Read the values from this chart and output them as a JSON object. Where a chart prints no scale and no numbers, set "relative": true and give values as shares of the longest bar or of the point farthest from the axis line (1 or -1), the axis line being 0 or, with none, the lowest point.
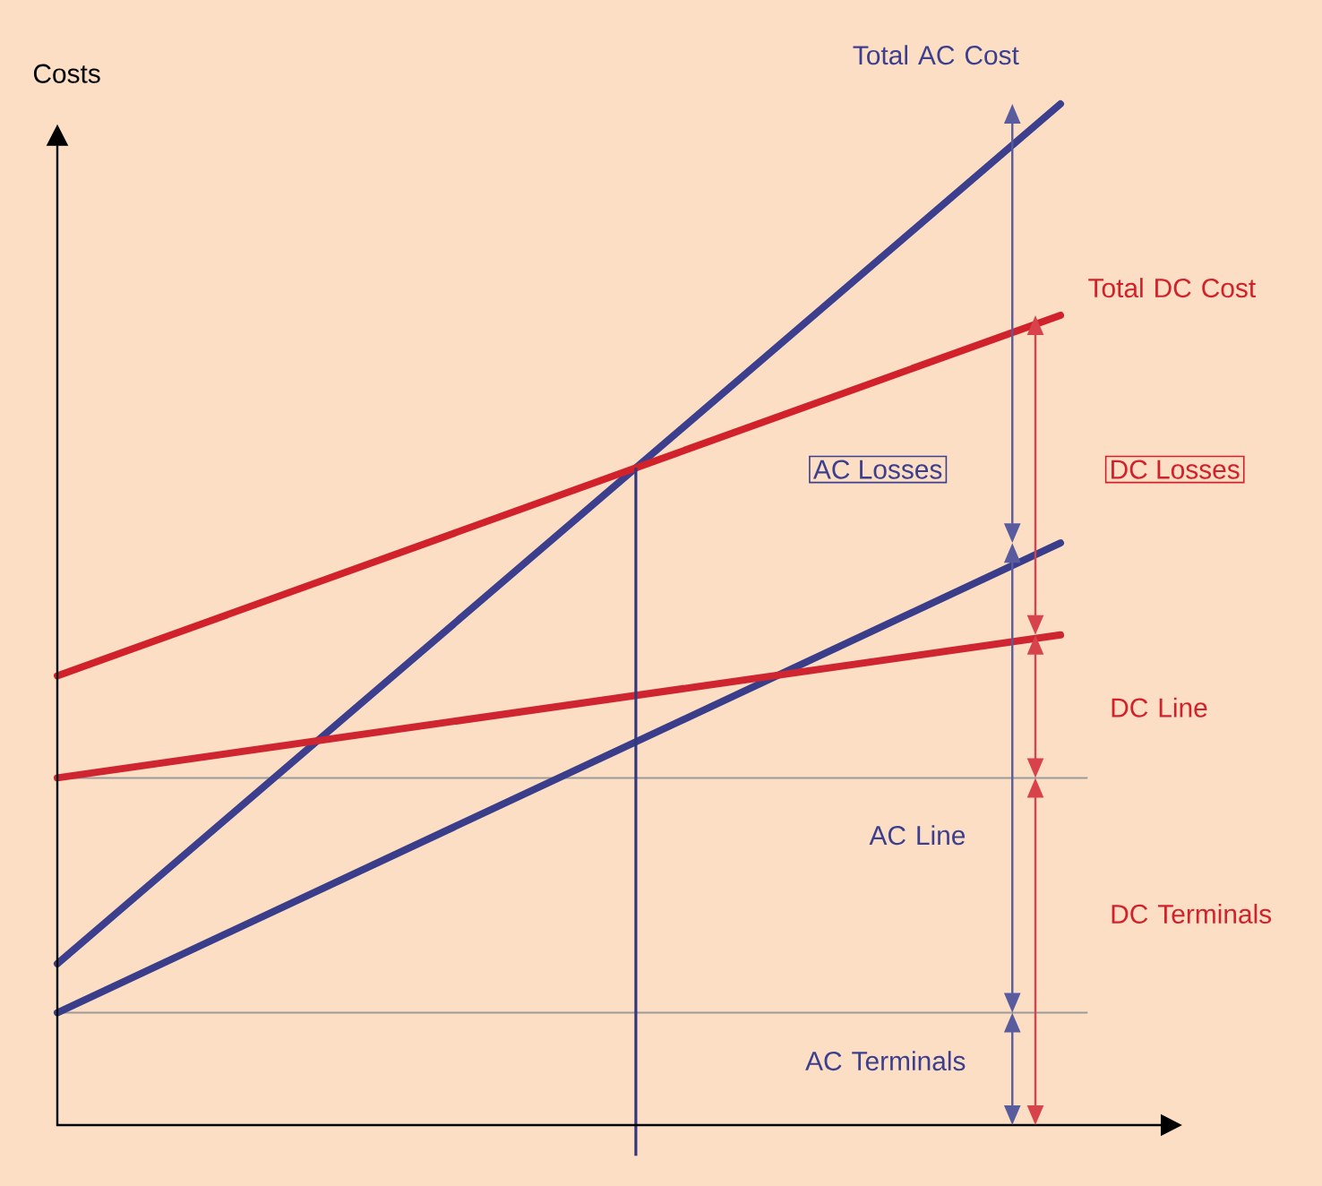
{
  "chart_data": {
    "type": "line",
    "ylabel": "Costs",
    "relative": true,
    "categories": [
      null,
      null
    ],
    "series": [
      {
        "name": "Total AC Cost",
        "color": "#3b3f8e",
        "values": [
          0.158,
          1.0
        ]
      },
      {
        "name": "Total DC Cost",
        "color": "#d1222b",
        "values": [
          0.44,
          0.793
        ]
      },
      {
        "color": "#393d8a",
        "values": [
          0.11,
          0.57
        ]
      },
      {
        "color": "#cf2530",
        "values": [
          0.34,
          0.48
        ]
      }
    ],
    "ref_lines": [
      {
        "axis": "y",
        "value": 0.34,
        "color": "#9a9a9a"
      },
      {
        "axis": "y",
        "value": 0.11,
        "color": "#9a9a9a"
      }
    ],
    "annotations": [
      "AC Losses",
      "DC Losses",
      "DC Line",
      "AC Line",
      "DC Terminals",
      "AC Terminals"
    ]
  }
}
